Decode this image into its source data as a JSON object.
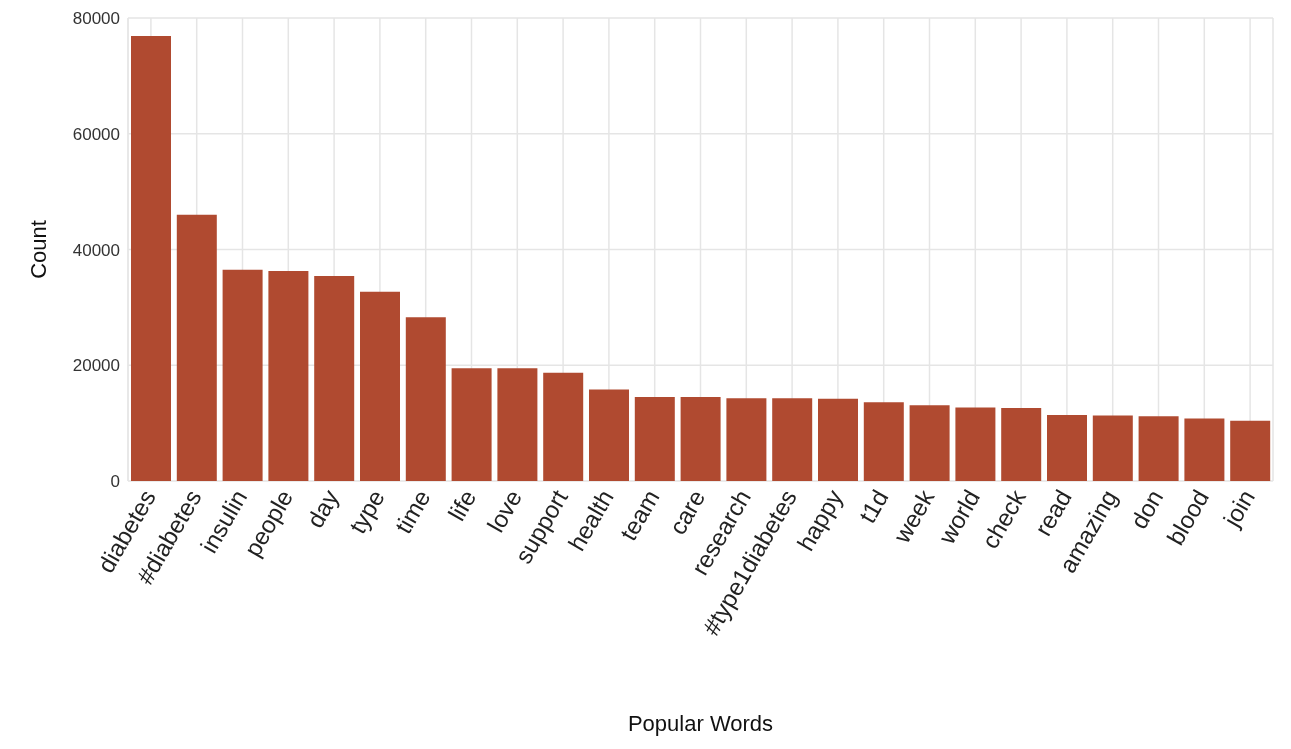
{
  "chart_data": {
    "type": "bar",
    "xlabel": "Popular Words",
    "ylabel": "Count",
    "categories": [
      "diabetes",
      "#diabetes",
      "insulin",
      "people",
      "day",
      "type",
      "time",
      "life",
      "love",
      "support",
      "health",
      "team",
      "care",
      "research",
      "#type1diabetes",
      "happy",
      "t1d",
      "week",
      "world",
      "check",
      "read",
      "amazing",
      "don",
      "blood",
      "join"
    ],
    "values": [
      76900,
      46000,
      36500,
      36300,
      35400,
      32700,
      28300,
      19500,
      19500,
      18700,
      15800,
      14500,
      14500,
      14300,
      14300,
      14200,
      13600,
      13100,
      12700,
      12600,
      11400,
      11300,
      11200,
      10800,
      10400
    ],
    "color": "#b04a30",
    "ylim": [
      0,
      80000
    ],
    "yticks": [
      0,
      20000,
      40000,
      60000,
      80000
    ],
    "grid": true
  }
}
